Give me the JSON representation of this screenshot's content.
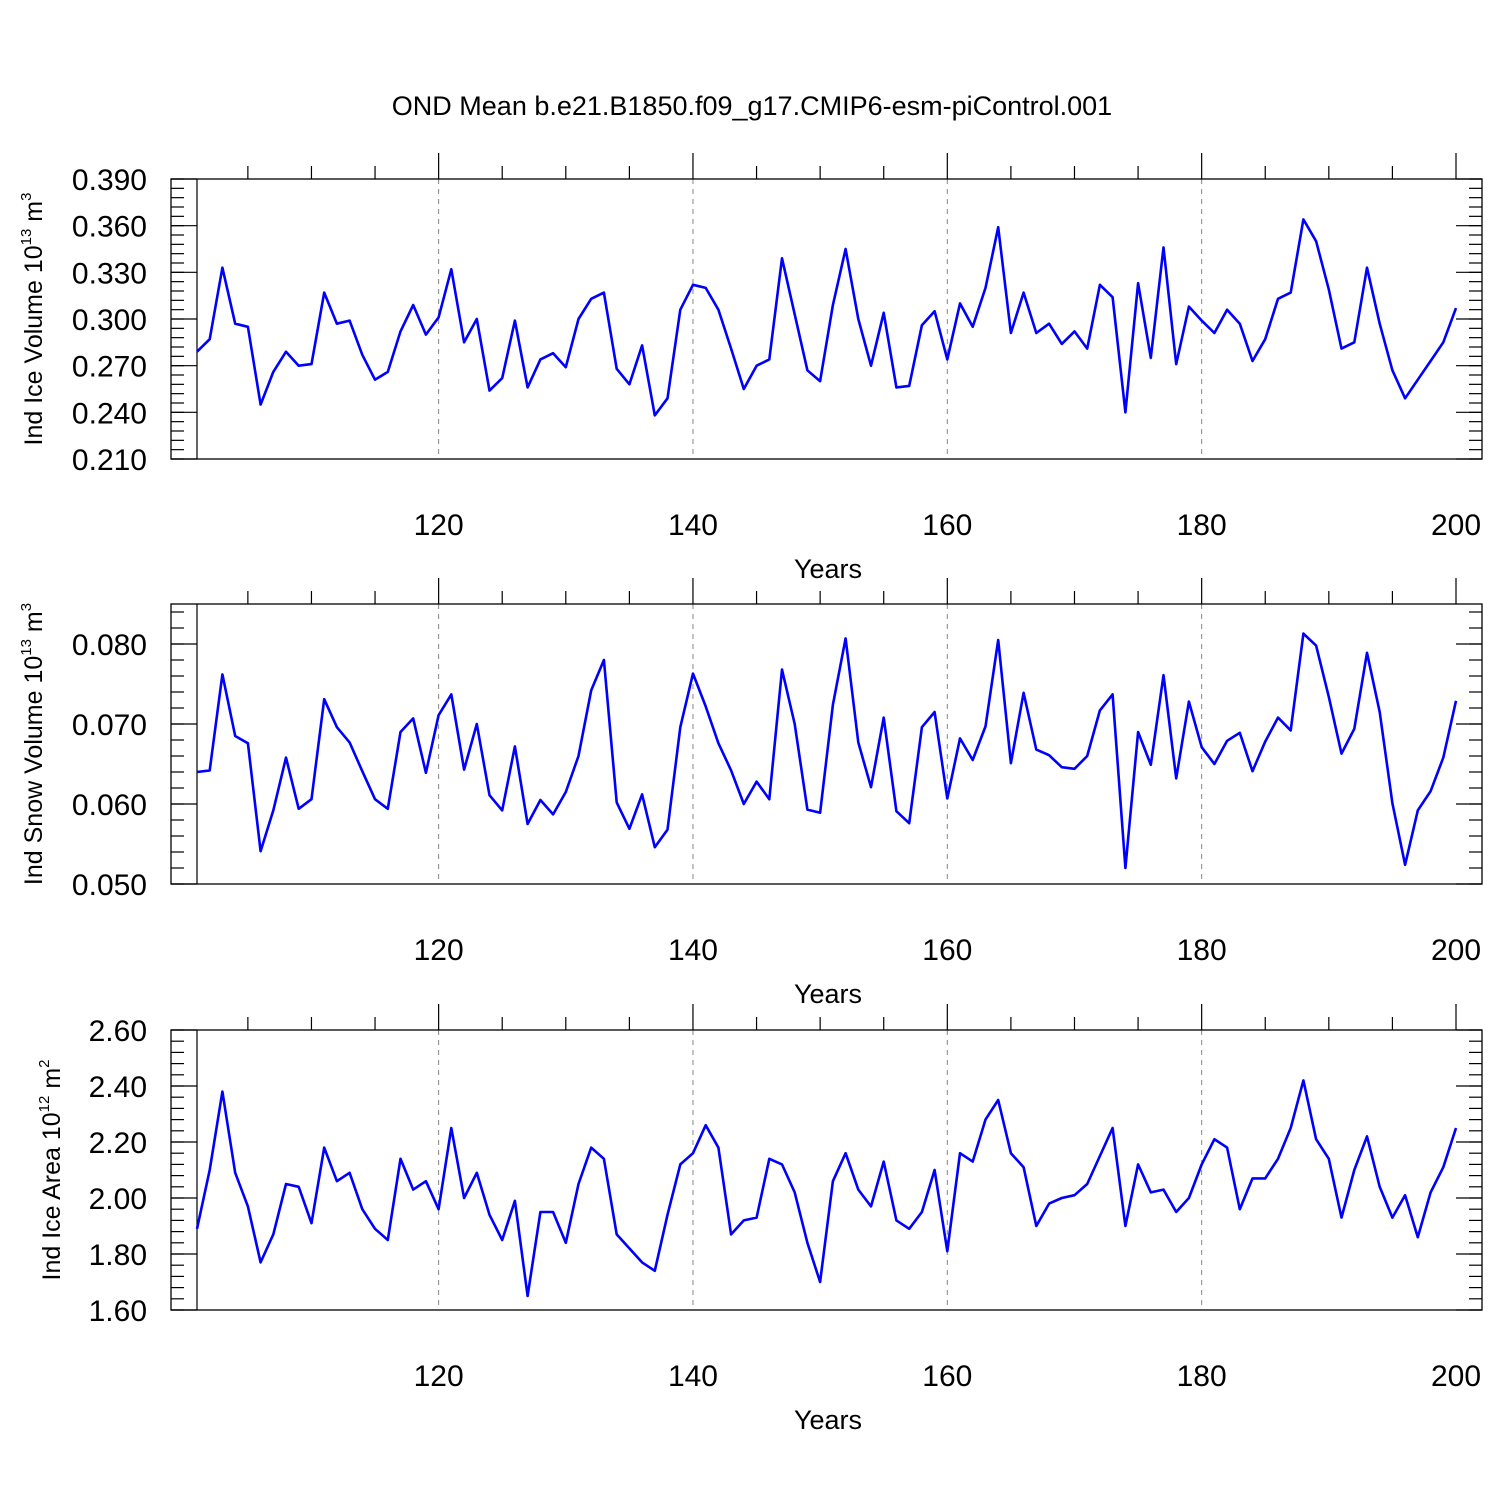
{
  "figure": {
    "title": "OND Mean b.e21.B1850.f09_g17.CMIP6-esm-piControl.001"
  },
  "chart_data": [
    {
      "type": "line",
      "ylabel": "Ind Ice Volume 10",
      "ylabel_exp": "13",
      "ylabel_unit": " m",
      "ylabel_unit_exp": "3",
      "xlabel": "Years",
      "xlim": [
        101,
        200
      ],
      "ylim": [
        0.21,
        0.39
      ],
      "yticks": [
        "0.210",
        "0.240",
        "0.270",
        "0.300",
        "0.330",
        "0.360",
        "0.390"
      ],
      "xticks": [
        "120",
        "140",
        "160",
        "180",
        "200"
      ],
      "grid_x": [
        120,
        140,
        160,
        180
      ],
      "color": "#0000ff",
      "x_start": 101,
      "values": [
        0.279,
        0.287,
        0.333,
        0.297,
        0.295,
        0.245,
        0.266,
        0.279,
        0.27,
        0.271,
        0.317,
        0.297,
        0.299,
        0.277,
        0.261,
        0.266,
        0.292,
        0.309,
        0.29,
        0.301,
        0.332,
        0.285,
        0.3,
        0.254,
        0.262,
        0.299,
        0.256,
        0.274,
        0.278,
        0.269,
        0.3,
        0.313,
        0.317,
        0.268,
        0.258,
        0.283,
        0.238,
        0.249,
        0.306,
        0.322,
        0.32,
        0.306,
        0.281,
        0.255,
        0.27,
        0.274,
        0.339,
        0.303,
        0.267,
        0.26,
        0.309,
        0.345,
        0.3,
        0.27,
        0.304,
        0.256,
        0.257,
        0.296,
        0.305,
        0.274,
        0.31,
        0.295,
        0.32,
        0.359,
        0.291,
        0.317,
        0.291,
        0.297,
        0.284,
        0.292,
        0.281,
        0.322,
        0.314,
        0.24,
        0.323,
        0.275,
        0.346,
        0.271,
        0.308,
        0.299,
        0.291,
        0.306,
        0.297,
        0.273,
        0.287,
        0.313,
        0.317,
        0.364,
        0.35,
        0.319,
        0.281,
        0.285,
        0.333,
        0.297,
        0.267,
        0.249,
        0.261,
        0.273,
        0.285,
        0.307
      ]
    },
    {
      "type": "line",
      "ylabel": "Ind Snow Volume 10",
      "ylabel_exp": "13",
      "ylabel_unit": " m",
      "ylabel_unit_exp": "3",
      "xlabel": "Years",
      "xlim": [
        101,
        200
      ],
      "ylim": [
        0.05,
        0.085
      ],
      "yticks": [
        "0.050",
        "0.060",
        "0.070",
        "0.080"
      ],
      "xticks": [
        "120",
        "140",
        "160",
        "180",
        "200"
      ],
      "grid_x": [
        120,
        140,
        160,
        180
      ],
      "color": "#0000ff",
      "x_start": 101,
      "values": [
        0.064,
        0.0642,
        0.0762,
        0.0685,
        0.0676,
        0.0541,
        0.0592,
        0.0658,
        0.0594,
        0.0606,
        0.0731,
        0.0696,
        0.0677,
        0.0641,
        0.0606,
        0.0594,
        0.069,
        0.0707,
        0.0639,
        0.0711,
        0.0737,
        0.0643,
        0.07,
        0.0611,
        0.0592,
        0.0672,
        0.0575,
        0.0605,
        0.0587,
        0.0615,
        0.066,
        0.0742,
        0.078,
        0.0602,
        0.0569,
        0.0612,
        0.0546,
        0.0568,
        0.0696,
        0.0763,
        0.0722,
        0.0676,
        0.0642,
        0.06,
        0.0628,
        0.0606,
        0.0768,
        0.07,
        0.0593,
        0.0589,
        0.0724,
        0.0807,
        0.0677,
        0.0621,
        0.0708,
        0.0591,
        0.0576,
        0.0696,
        0.0715,
        0.0607,
        0.0682,
        0.0655,
        0.0697,
        0.0805,
        0.0651,
        0.0739,
        0.0668,
        0.0661,
        0.0646,
        0.0644,
        0.066,
        0.0717,
        0.0737,
        0.052,
        0.069,
        0.0649,
        0.0761,
        0.0632,
        0.0728,
        0.0671,
        0.065,
        0.0679,
        0.0689,
        0.0641,
        0.0678,
        0.0708,
        0.0692,
        0.0813,
        0.0798,
        0.0734,
        0.0663,
        0.0694,
        0.0789,
        0.0715,
        0.0601,
        0.0524,
        0.0592,
        0.0616,
        0.0658,
        0.0729
      ]
    },
    {
      "type": "line",
      "ylabel": "Ind Ice Area 10",
      "ylabel_exp": "12",
      "ylabel_unit": " m",
      "ylabel_unit_exp": "2",
      "xlabel": "Years",
      "xlim": [
        101,
        200
      ],
      "ylim": [
        1.6,
        2.6
      ],
      "yticks": [
        "1.60",
        "1.80",
        "2.00",
        "2.20",
        "2.40",
        "2.60"
      ],
      "xticks": [
        "120",
        "140",
        "160",
        "180",
        "200"
      ],
      "grid_x": [
        120,
        140,
        160,
        180
      ],
      "color": "#0000ff",
      "x_start": 101,
      "values": [
        1.89,
        2.1,
        2.38,
        2.09,
        1.97,
        1.77,
        1.87,
        2.05,
        2.04,
        1.91,
        2.18,
        2.06,
        2.09,
        1.96,
        1.89,
        1.85,
        2.14,
        2.03,
        2.06,
        1.96,
        2.25,
        2.0,
        2.09,
        1.94,
        1.85,
        1.99,
        1.65,
        1.95,
        1.95,
        1.84,
        2.05,
        2.18,
        2.14,
        1.87,
        1.82,
        1.77,
        1.74,
        1.94,
        2.12,
        2.16,
        2.26,
        2.18,
        1.87,
        1.92,
        1.93,
        2.14,
        2.12,
        2.02,
        1.84,
        1.7,
        2.06,
        2.16,
        2.03,
        1.97,
        2.13,
        1.92,
        1.89,
        1.95,
        2.1,
        1.81,
        2.16,
        2.13,
        2.28,
        2.35,
        2.16,
        2.11,
        1.9,
        1.98,
        2.0,
        2.01,
        2.05,
        2.15,
        2.25,
        1.9,
        2.12,
        2.02,
        2.03,
        1.95,
        2.0,
        2.12,
        2.21,
        2.18,
        1.96,
        2.07,
        2.07,
        2.14,
        2.25,
        2.42,
        2.21,
        2.14,
        1.93,
        2.1,
        2.22,
        2.04,
        1.93,
        2.01,
        1.86,
        2.02,
        2.11,
        2.25
      ]
    }
  ]
}
